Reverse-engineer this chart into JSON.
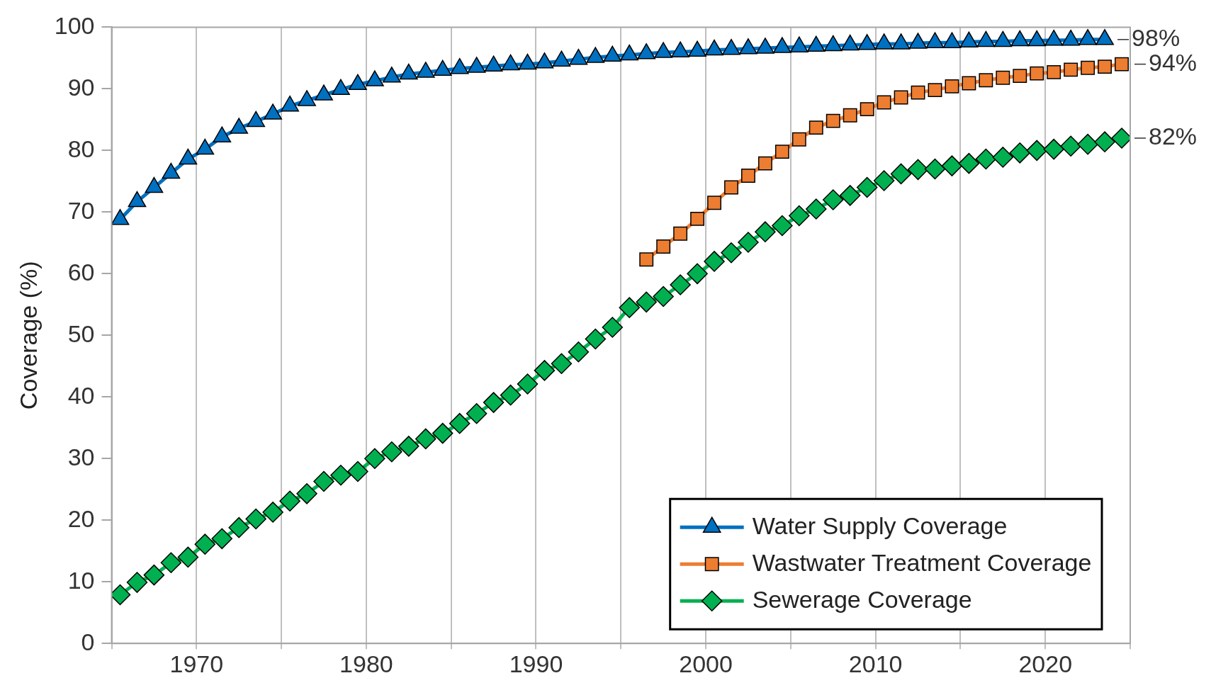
{
  "chart_data": {
    "type": "line",
    "ylabel": "Coverage (%)",
    "xlim": [
      1965,
      2025
    ],
    "ylim": [
      0,
      100
    ],
    "xticks": [
      {
        "value": 1965,
        "label": null
      },
      1970,
      {
        "value": 1975,
        "label": null
      },
      1980,
      {
        "value": 1985,
        "label": null
      },
      1990,
      {
        "value": 1995,
        "label": null
      },
      2000,
      {
        "value": 2005,
        "label": null
      },
      2010,
      {
        "value": 2015,
        "label": null
      },
      2020,
      {
        "value": 2025,
        "label": null
      }
    ],
    "yticks": [
      0,
      10,
      20,
      30,
      40,
      50,
      60,
      70,
      80,
      90,
      100
    ],
    "grid": "x",
    "legend": "bottom right",
    "series": [
      {
        "name": "Water Supply Coverage",
        "color": "#0070c0",
        "marker": "triangle",
        "x": [
          1965.5,
          1966.5,
          1967.5,
          1968.5,
          1969.5,
          1970.5,
          1971.5,
          1972.5,
          1973.5,
          1974.5,
          1975.5,
          1976.5,
          1977.5,
          1978.5,
          1979.5,
          1980.5,
          1981.5,
          1982.5,
          1983.5,
          1984.5,
          1985.5,
          1986.5,
          1987.5,
          1988.5,
          1989.5,
          1990.5,
          1991.5,
          1992.5,
          1993.5,
          1994.5,
          1995.5,
          1996.5,
          1997.5,
          1998.5,
          1999.5,
          2000.5,
          2001.5,
          2002.5,
          2003.5,
          2004.5,
          2005.5,
          2006.5,
          2007.5,
          2008.5,
          2009.5,
          2010.5,
          2011.5,
          2012.5,
          2013.5,
          2014.5,
          2015.5,
          2016.5,
          2017.5,
          2018.5,
          2019.5,
          2020.5,
          2021.5,
          2022.5,
          2023.5
        ],
        "values": [
          68.8,
          71.7,
          74.0,
          76.3,
          78.6,
          80.2,
          82.2,
          83.6,
          84.7,
          85.9,
          87.2,
          88.1,
          89.0,
          89.9,
          90.7,
          91.3,
          91.9,
          92.4,
          92.7,
          93.0,
          93.3,
          93.5,
          93.7,
          93.9,
          94.0,
          94.2,
          94.5,
          94.8,
          95.1,
          95.3,
          95.5,
          95.7,
          95.9,
          96.0,
          96.1,
          96.3,
          96.4,
          96.5,
          96.6,
          96.7,
          96.8,
          96.9,
          97.0,
          97.1,
          97.2,
          97.3,
          97.3,
          97.4,
          97.5,
          97.5,
          97.6,
          97.7,
          97.7,
          97.8,
          97.8,
          97.9,
          97.9,
          98.0,
          98.0
        ]
      },
      {
        "name": "Wastwater Treatment Coverage",
        "color": "#ed7d31",
        "marker": "square",
        "x": [
          1996.5,
          1997.5,
          1998.5,
          1999.5,
          2000.5,
          2001.5,
          2002.5,
          2003.5,
          2004.5,
          2005.5,
          2006.5,
          2007.5,
          2008.5,
          2009.5,
          2010.5,
          2011.5,
          2012.5,
          2013.5,
          2014.5,
          2015.5,
          2016.5,
          2017.5,
          2018.5,
          2019.5,
          2020.5,
          2021.5,
          2022.5,
          2023.5,
          2024.5
        ],
        "values": [
          62.3,
          64.4,
          66.5,
          68.9,
          71.5,
          74.0,
          75.9,
          77.9,
          79.8,
          81.8,
          83.7,
          84.8,
          85.7,
          86.7,
          87.8,
          88.6,
          89.4,
          89.8,
          90.4,
          90.9,
          91.4,
          91.8,
          92.1,
          92.5,
          92.7,
          93.1,
          93.4,
          93.6,
          94.0
        ]
      },
      {
        "name": "Sewerage Coverage",
        "color": "#00b050",
        "marker": "diamond",
        "x": [
          1965.5,
          1966.5,
          1967.5,
          1968.5,
          1969.5,
          1970.5,
          1971.5,
          1972.5,
          1973.5,
          1974.5,
          1975.5,
          1976.5,
          1977.5,
          1978.5,
          1979.5,
          1980.5,
          1981.5,
          1982.5,
          1983.5,
          1984.5,
          1985.5,
          1986.5,
          1987.5,
          1988.5,
          1989.5,
          1990.5,
          1991.5,
          1992.5,
          1993.5,
          1994.5,
          1995.5,
          1996.5,
          1997.5,
          1998.5,
          1999.5,
          2000.5,
          2001.5,
          2002.5,
          2003.5,
          2004.5,
          2005.5,
          2006.5,
          2007.5,
          2008.5,
          2009.5,
          2010.5,
          2011.5,
          2012.5,
          2013.5,
          2014.5,
          2015.5,
          2016.5,
          2017.5,
          2018.5,
          2019.5,
          2020.5,
          2021.5,
          2022.5,
          2023.5,
          2024.5
        ],
        "values": [
          7.9,
          9.9,
          11.1,
          13.1,
          14.0,
          16.1,
          17.0,
          18.8,
          20.2,
          21.3,
          23.1,
          24.3,
          26.3,
          27.3,
          27.9,
          30.0,
          31.1,
          32.0,
          33.2,
          34.1,
          35.7,
          37.3,
          39.1,
          40.3,
          42.1,
          44.3,
          45.4,
          47.3,
          49.4,
          51.3,
          54.5,
          55.4,
          56.3,
          58.2,
          60.0,
          62.0,
          63.4,
          65.1,
          66.8,
          67.8,
          69.4,
          70.5,
          72.0,
          72.7,
          74.0,
          75.1,
          76.2,
          76.9,
          77.0,
          77.5,
          77.9,
          78.6,
          78.9,
          79.6,
          80.0,
          80.2,
          80.7,
          81.0,
          81.4,
          82.0
        ]
      }
    ],
    "annotations": [
      "98%",
      "94%",
      "82%"
    ]
  }
}
